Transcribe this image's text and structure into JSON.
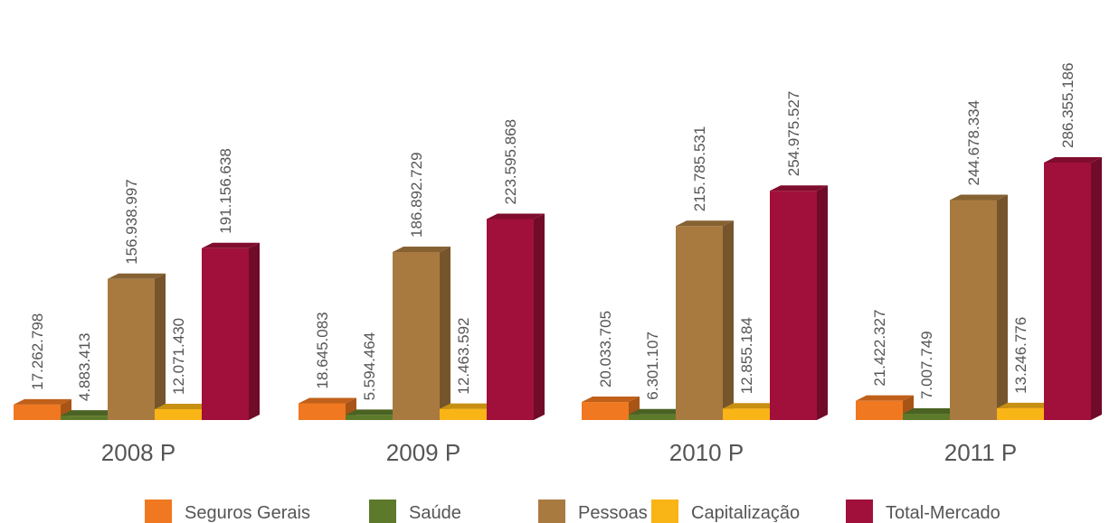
{
  "chart_data": {
    "type": "bar3d",
    "categories": [
      "2008 P",
      "2009 P",
      "2010 P",
      "2011 P"
    ],
    "series": [
      {
        "name": "Seguros Gerais",
        "color": "#f07820",
        "values": [
          17262798,
          18645083,
          20033705,
          21422327
        ],
        "value_labels": [
          "17.262.798",
          "18.645.083",
          "20.033.705",
          "21.422.327"
        ]
      },
      {
        "name": "Saúde",
        "color": "#5d7a2b",
        "values": [
          4883413,
          5594464,
          6301107,
          7007749
        ],
        "value_labels": [
          "4.883.413",
          "5.594.464",
          "6.301.107",
          "7.007.749"
        ]
      },
      {
        "name": "Pessoas",
        "color": "#a87a40",
        "values": [
          156938997,
          186892729,
          215785531,
          244678334
        ],
        "value_labels": [
          "156.938.997",
          "186.892.729",
          "215.785.531",
          "244.678.334"
        ]
      },
      {
        "name": "Capitalização",
        "color": "#f9b416",
        "values": [
          12071430,
          12463592,
          12855184,
          13246776
        ],
        "value_labels": [
          "12.071.430",
          "12.463.592",
          "12.855.184",
          "13.246.776"
        ]
      },
      {
        "name": "Total-Mercado",
        "color": "#a0103a",
        "values": [
          191156638,
          223595868,
          254975527,
          286355186
        ],
        "value_labels": [
          "191.156.638",
          "223.595.868",
          "254.975.527",
          "286.355.186"
        ]
      }
    ]
  }
}
